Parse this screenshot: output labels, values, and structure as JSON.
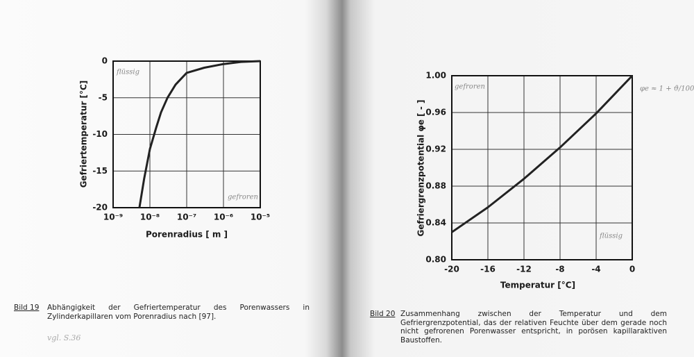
{
  "chart_data": [
    {
      "type": "line",
      "xscale": "log",
      "grid": true,
      "color": "#222222",
      "ylabel": "Gefriertemperatur [°C]",
      "xlabel": "Porenradius [ m ]",
      "x": [
        5.2e-09,
        7e-09,
        1e-08,
        1.5e-08,
        2e-08,
        3e-08,
        5e-08,
        1e-07,
        3e-07,
        1e-06,
        3e-06,
        1e-05
      ],
      "values": [
        -20,
        -16,
        -12,
        -9,
        -7,
        -5,
        -3.2,
        -1.6,
        -0.9,
        -0.4,
        -0.1,
        0
      ],
      "xlim": [
        1e-09,
        1e-05
      ],
      "xticks": [
        {
          "value": 1e-09,
          "label": "10⁻⁹"
        },
        {
          "value": 1e-08,
          "label": "10⁻⁸"
        },
        {
          "value": 1e-07,
          "label": "10⁻⁷"
        },
        {
          "value": 1e-06,
          "label": "10⁻⁶"
        },
        {
          "value": 1e-05,
          "label": "10⁻⁵"
        }
      ],
      "ylim": [
        -20,
        0
      ],
      "yticks": [
        0,
        -5,
        -10,
        -15,
        -20
      ],
      "annotations": [
        "flüssig",
        "gefroren"
      ]
    },
    {
      "type": "line",
      "grid": true,
      "color": "#222222",
      "ylabel": "Gefriergrenzpotential φe [ - ]",
      "xlabel": "Temperatur [°C]",
      "x": [
        -20,
        -16,
        -12,
        -8,
        -4,
        0
      ],
      "values": [
        0.83,
        0.857,
        0.888,
        0.922,
        0.959,
        1.0
      ],
      "xlim": [
        -20,
        0
      ],
      "xticks": [
        -20,
        -16,
        -12,
        -8,
        -4,
        0
      ],
      "ylim": [
        0.8,
        1.0
      ],
      "yticks": [
        {
          "value": 1,
          "label": "1.00"
        },
        0.96,
        0.92,
        0.88,
        0.84,
        {
          "value": 0.8,
          "label": "0.80"
        }
      ],
      "annotations": [
        "gefroren",
        "flüssig",
        "φe ≈ 1 + ϑ/100"
      ]
    }
  ],
  "captions": [
    {
      "label": "Bild 19",
      "text": "Abhängigkeit der Gefriertemperatur des Porenwassers in Zylinderkapillaren vom Porenradius nach [97]."
    },
    {
      "label": "Bild 20",
      "text": "Zusammenhang zwischen der Temperatur und dem Gefriergrenzpotential, das der relativen Feuchte über dem gerade noch nicht gefrorenen Porenwasser entspricht, in porösen kapillaraktiven Baustoffen."
    }
  ],
  "notes": [
    "vgl. S.36"
  ]
}
